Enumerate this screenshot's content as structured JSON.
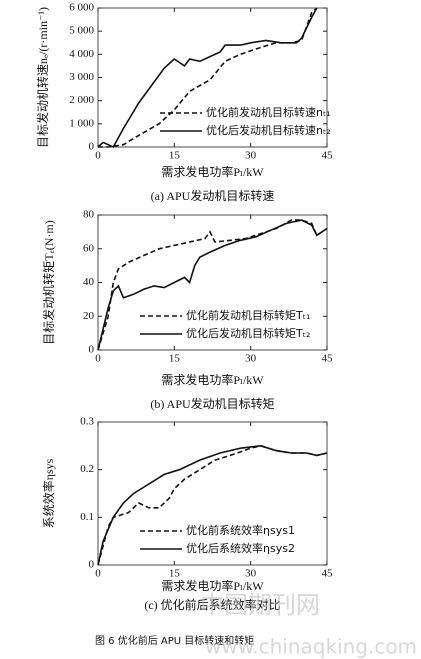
{
  "chart_data": [
    {
      "type": "line",
      "subtitle": "(a) APU发动机目标转速",
      "x_label": "需求发电功率Pₗ/kW",
      "y_label": "目标发动机转速nₑ/(r·min⁻¹)",
      "xlim": [
        0,
        45
      ],
      "xticks": [
        0,
        15,
        30,
        45
      ],
      "ylim": [
        0,
        6000
      ],
      "yticks": [
        0,
        {
          "value": 1000,
          "label": "1 000"
        },
        {
          "value": 2000,
          "label": "2 000"
        },
        {
          "value": 3000,
          "label": "3 000"
        },
        {
          "value": 4000,
          "label": "4 000"
        },
        {
          "value": 5000,
          "label": "5 000"
        },
        {
          "value": 6000,
          "label": "6 000"
        }
      ],
      "legend": "lower right",
      "series": [
        {
          "name": "优化前发动机目标转速nₜ₁",
          "color": "#111111",
          "dash": true,
          "x": [
            0,
            2,
            5,
            8,
            12,
            15,
            18,
            22,
            25,
            28,
            32,
            35,
            38,
            40,
            42,
            43
          ],
          "values": [
            0,
            0,
            100,
            500,
            1000,
            1600,
            2400,
            2900,
            3700,
            4000,
            4300,
            4500,
            4500,
            4600,
            5800,
            6000
          ]
        },
        {
          "name": "优化后发动机目标转速nₜ₂",
          "color": "#111111",
          "dash": false,
          "x": [
            0,
            1,
            3,
            5,
            8,
            11,
            13,
            15,
            17,
            18,
            20,
            22,
            24,
            25,
            28,
            30,
            33,
            36,
            39,
            40,
            42,
            43
          ],
          "values": [
            0,
            200,
            0,
            800,
            1900,
            2800,
            3400,
            3800,
            3500,
            3800,
            3700,
            3900,
            4100,
            4400,
            4400,
            4500,
            4600,
            4500,
            4500,
            4700,
            5600,
            6000
          ]
        }
      ]
    },
    {
      "type": "line",
      "subtitle": "(b) APU发动机目标转矩",
      "x_label": "需求发电功率Pₗ/kW",
      "y_label": "目标发动机转矩Tₑ(N·m)",
      "xlim": [
        0,
        45
      ],
      "xticks": [
        0,
        15,
        30,
        45
      ],
      "ylim": [
        0,
        80
      ],
      "yticks": [
        0,
        20,
        40,
        60,
        80
      ],
      "legend": "lower center",
      "series": [
        {
          "name": "优化前发动机目标转矩Tₜ₁",
          "color": "#111111",
          "dash": true,
          "x": [
            0,
            2,
            3,
            4,
            6,
            9,
            12,
            15,
            18,
            21,
            22,
            23,
            26,
            29,
            32,
            35,
            38,
            40,
            42,
            43,
            45
          ],
          "values": [
            0,
            20,
            40,
            48,
            52,
            56,
            60,
            62,
            64,
            66,
            70,
            64,
            65,
            66,
            69,
            72,
            77,
            77,
            75,
            68,
            72
          ]
        },
        {
          "name": "优化后发动机目标转矩Tₜ₂",
          "color": "#111111",
          "dash": false,
          "x": [
            0,
            2,
            3,
            4,
            5,
            7,
            9,
            11,
            13,
            15,
            17,
            18,
            19,
            20,
            22,
            25,
            28,
            31,
            34,
            37,
            40,
            42,
            43,
            45
          ],
          "values": [
            0,
            25,
            35,
            38,
            31,
            33,
            36,
            38,
            37,
            40,
            43,
            40,
            50,
            55,
            58,
            62,
            65,
            67,
            71,
            75,
            77,
            74,
            68,
            72
          ]
        }
      ]
    },
    {
      "type": "line",
      "subtitle": "(c) 优化前后系统效率对比",
      "x_label": "需求发电功率Pₗ/kW",
      "y_label": "系统效率ηsys",
      "xlim": [
        0,
        45
      ],
      "xticks": [
        0,
        15,
        30,
        45
      ],
      "ylim": [
        0,
        0.3
      ],
      "yticks": [
        0,
        0.1,
        0.2,
        0.3
      ],
      "legend": "lower center",
      "series": [
        {
          "name": "优化前系统效率ηsys1",
          "color": "#111111",
          "dash": true,
          "x": [
            0,
            2,
            3,
            6,
            8,
            10,
            12,
            14,
            15,
            17,
            20,
            23,
            26,
            30,
            32,
            35,
            38,
            41,
            43,
            45
          ],
          "values": [
            0,
            0.08,
            0.1,
            0.11,
            0.13,
            0.12,
            0.12,
            0.14,
            0.16,
            0.18,
            0.2,
            0.22,
            0.23,
            0.245,
            0.25,
            0.24,
            0.235,
            0.235,
            0.23,
            0.235
          ]
        },
        {
          "name": "优化后系统效率ηsys2",
          "color": "#111111",
          "dash": false,
          "x": [
            0,
            1,
            3,
            5,
            7,
            10,
            13,
            16,
            20,
            24,
            28,
            32,
            35,
            38,
            41,
            43,
            45
          ],
          "values": [
            0,
            0.05,
            0.1,
            0.13,
            0.15,
            0.17,
            0.19,
            0.2,
            0.22,
            0.235,
            0.245,
            0.25,
            0.24,
            0.235,
            0.235,
            0.23,
            0.235
          ]
        }
      ]
    }
  ],
  "caption": "图 6  优化前后 APU 目标转速和转矩",
  "watermark": {
    "site": "中国期刊网",
    "url": "www.chinaqking.com"
  }
}
